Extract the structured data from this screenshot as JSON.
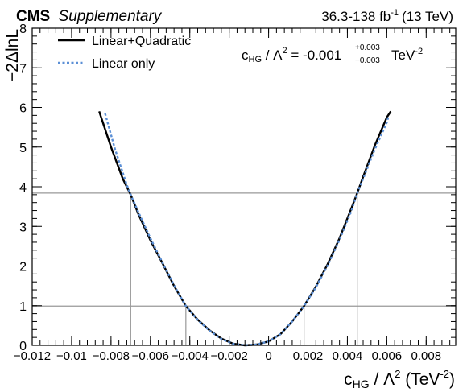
{
  "chart_data": {
    "type": "line",
    "header": {
      "cms": "CMS",
      "supplementary": "Supplementary",
      "lumi_main": "36.3-138 fb",
      "lumi_exp": "-1",
      "lumi_energy": "(13 TeV)"
    },
    "annotation": {
      "coef_main": "c",
      "coef_sub": "HG",
      "mid": " / Λ",
      "mid_sup": "2",
      "value": " = -0.001",
      "err_up": "+0.003",
      "err_down": "−0.003",
      "unit": " TeV",
      "unit_sup": "-2"
    },
    "xaxis": {
      "label_main": "c",
      "label_sub": "HG",
      "label_mid": " / Λ",
      "label_sup": "2",
      "label_unit": " (TeV",
      "label_unit_sup": "-2",
      "label_close": ")",
      "range": [
        -0.012,
        0.0095
      ],
      "ticks": [
        -0.012,
        -0.01,
        -0.008,
        -0.006,
        -0.004,
        -0.002,
        0,
        0.002,
        0.004,
        0.006,
        0.008
      ],
      "tick_labels": [
        "−0.012",
        "−0.01",
        "−0.008",
        "−0.006",
        "−0.004",
        "−0.002",
        "0",
        "0.002",
        "0.004",
        "0.006",
        "0.008"
      ]
    },
    "yaxis": {
      "label": "−2ΔlnL",
      "range": [
        0,
        8
      ],
      "ticks": [
        0,
        1,
        2,
        3,
        4,
        5,
        6,
        7,
        8
      ],
      "tick_labels": [
        "0",
        "1",
        "2",
        "3",
        "4",
        "5",
        "6",
        "7",
        "8"
      ]
    },
    "legend": {
      "position": "top-left",
      "entries": [
        {
          "name": "Linear+Quadratic",
          "color": "#000000",
          "style": "solid"
        },
        {
          "name": "Linear only",
          "color": "#5b8fd6",
          "style": "dotted"
        }
      ]
    },
    "reference_lines": {
      "horizontal": [
        0.99,
        3.84
      ],
      "vertical": [
        {
          "x": -0.007,
          "y": 3.84
        },
        {
          "x": -0.0042,
          "y": 0.99
        },
        {
          "x": 0.0018,
          "y": 0.99
        },
        {
          "x": 0.0045,
          "y": 3.84
        }
      ],
      "color": "#999999"
    },
    "series": [
      {
        "name": "Linear+Quadratic",
        "color": "#000000",
        "x": [
          -0.0086,
          -0.008,
          -0.0074,
          -0.007,
          -0.0066,
          -0.006,
          -0.0054,
          -0.0048,
          -0.0042,
          -0.0036,
          -0.003,
          -0.0024,
          -0.0018,
          -0.0012,
          -0.0006,
          0,
          0.0006,
          0.0012,
          0.0018,
          0.0024,
          0.003,
          0.0036,
          0.0042,
          0.0045,
          0.0048,
          0.0054,
          0.006,
          0.0062
        ],
        "y": [
          5.9,
          5.0,
          4.2,
          3.8,
          3.3,
          2.65,
          2.08,
          1.5,
          0.99,
          0.65,
          0.38,
          0.17,
          0.04,
          0.0,
          0.02,
          0.1,
          0.28,
          0.6,
          0.99,
          1.48,
          2.05,
          2.7,
          3.45,
          3.84,
          4.25,
          5.05,
          5.75,
          5.9
        ]
      },
      {
        "name": "Linear only",
        "color": "#5b8fd6",
        "x": [
          -0.0083,
          -0.0078,
          -0.0072,
          -0.007,
          -0.0066,
          -0.006,
          -0.0054,
          -0.0048,
          -0.0042,
          -0.0036,
          -0.003,
          -0.0024,
          -0.0018,
          -0.0012,
          -0.0006,
          0,
          0.0006,
          0.0012,
          0.0018,
          0.0024,
          0.003,
          0.0036,
          0.0042,
          0.0045,
          0.0048,
          0.0054,
          0.006,
          0.0061
        ],
        "y": [
          5.85,
          4.95,
          4.05,
          3.8,
          3.35,
          2.7,
          2.1,
          1.52,
          0.99,
          0.64,
          0.37,
          0.16,
          0.04,
          0.0,
          0.02,
          0.1,
          0.28,
          0.6,
          0.99,
          1.46,
          2.02,
          2.66,
          3.38,
          3.84,
          4.2,
          4.95,
          5.62,
          5.8
        ]
      }
    ]
  }
}
